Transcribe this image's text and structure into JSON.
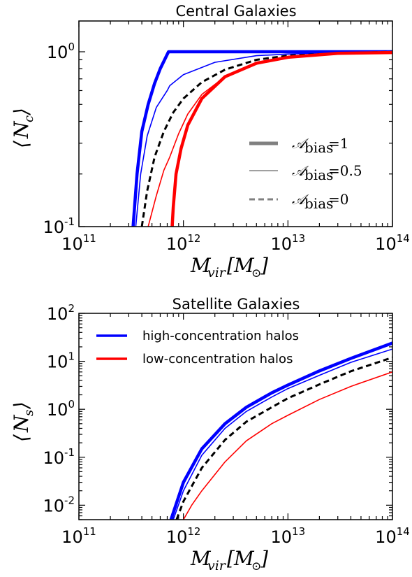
{
  "chart_data": [
    {
      "type": "line",
      "title": "Central Galaxies",
      "xlabel": "M_vir[M_⊙]",
      "ylabel": "⟨N_c⟩",
      "xscale": "log",
      "yscale": "log",
      "xlim": [
        100000000000.0,
        100000000000000.0
      ],
      "ylim": [
        0.1,
        1.5
      ],
      "x_ticks": [
        {
          "mant": "10",
          "exp": "11"
        },
        {
          "mant": "10",
          "exp": "12"
        },
        {
          "mant": "10",
          "exp": "13"
        },
        {
          "mant": "10",
          "exp": "14"
        }
      ],
      "y_ticks": [
        {
          "mant": "10",
          "exp": "-1"
        },
        {
          "mant": "10",
          "exp": "0"
        }
      ],
      "legend": {
        "placement": "lower-right",
        "entries": [
          {
            "label": "A_bias = 1",
            "style": "thick",
            "color": "#808080"
          },
          {
            "label": "A_bias = 0.5",
            "style": "thin",
            "color": "#808080"
          },
          {
            "label": "A_bias = 0",
            "style": "dashed",
            "color": "#808080"
          }
        ]
      },
      "series": [
        {
          "color": "#0000ff",
          "style": "thick",
          "x": [
            330000000000.0,
            360000000000.0,
            400000000000.0,
            460000000000.0,
            530000000000.0,
            600000000000.0,
            720000000000.0,
            1000000000000.0,
            10000000000000.0,
            100000000000000.0
          ],
          "y": [
            0.1,
            0.2,
            0.35,
            0.5,
            0.66,
            0.8,
            1.0,
            1.0,
            1.0,
            1.0
          ]
        },
        {
          "color": "#0000ff",
          "style": "thin",
          "x": [
            350000000000.0,
            390000000000.0,
            450000000000.0,
            550000000000.0,
            700000000000.0,
            740000000000.0,
            1000000000000.0,
            2000000000000.0,
            5000000000000.0,
            10000000000000.0,
            30000000000000.0,
            100000000000000.0
          ],
          "y": [
            0.1,
            0.2,
            0.33,
            0.48,
            0.6,
            0.64,
            0.74,
            0.87,
            0.95,
            0.97,
            0.99,
            1.0
          ]
        },
        {
          "color": "#000000",
          "style": "dashed",
          "x": [
            400000000000.0,
            450000000000.0,
            530000000000.0,
            650000000000.0,
            800000000000.0,
            1000000000000.0,
            1500000000000.0,
            2500000000000.0,
            5000000000000.0,
            10000000000000.0,
            30000000000000.0,
            100000000000000.0
          ],
          "y": [
            0.1,
            0.16,
            0.25,
            0.35,
            0.45,
            0.54,
            0.67,
            0.79,
            0.9,
            0.95,
            0.98,
            1.0
          ]
        },
        {
          "color": "#ff0000",
          "style": "thin",
          "x": [
            460000000000.0,
            550000000000.0,
            650000000000.0,
            740000000000.0,
            900000000000.0,
            1100000000000.0,
            1500000000000.0,
            2500000000000.0,
            5000000000000.0,
            10000000000000.0,
            30000000000000.0,
            100000000000000.0
          ],
          "y": [
            0.1,
            0.15,
            0.21,
            0.25,
            0.34,
            0.44,
            0.57,
            0.72,
            0.86,
            0.93,
            0.98,
            0.99
          ]
        },
        {
          "color": "#ff0000",
          "style": "thick",
          "x": [
            780000000000.0,
            800000000000.0,
            850000000000.0,
            950000000000.0,
            1100000000000.0,
            1500000000000.0,
            2500000000000.0,
            5000000000000.0,
            10000000000000.0,
            30000000000000.0,
            100000000000000.0
          ],
          "y": [
            0.1,
            0.13,
            0.2,
            0.28,
            0.38,
            0.54,
            0.72,
            0.86,
            0.93,
            0.98,
            0.99
          ]
        }
      ]
    },
    {
      "type": "line",
      "title": "Satellite Galaxies",
      "xlabel": "M_vir[M_⊙]",
      "ylabel": "⟨N_s⟩",
      "xscale": "log",
      "yscale": "log",
      "xlim": [
        100000000000.0,
        100000000000000.0
      ],
      "ylim": [
        0.005,
        100
      ],
      "x_ticks": [
        {
          "mant": "10",
          "exp": "11"
        },
        {
          "mant": "10",
          "exp": "12"
        },
        {
          "mant": "10",
          "exp": "13"
        },
        {
          "mant": "10",
          "exp": "14"
        }
      ],
      "y_ticks": [
        {
          "mant": "10",
          "exp": "-2"
        },
        {
          "mant": "10",
          "exp": "-1"
        },
        {
          "mant": "10",
          "exp": "0"
        },
        {
          "mant": "10",
          "exp": "1"
        },
        {
          "mant": "10",
          "exp": "2"
        }
      ],
      "legend": {
        "placement": "top-left",
        "entries": [
          {
            "label": "high-concentration halos",
            "style": "thick",
            "color": "#0000ff"
          },
          {
            "label": "low-concentration halos",
            "style": "thick",
            "color": "#ff0000"
          }
        ]
      },
      "series": [
        {
          "color": "#0000ff",
          "style": "thick",
          "x": [
            760000000000.0,
            1000000000000.0,
            1500000000000.0,
            2500000000000.0,
            4000000000000.0,
            7000000000000.0,
            10000000000000.0,
            20000000000000.0,
            40000000000000.0,
            100000000000000.0
          ],
          "y": [
            0.005,
            0.03,
            0.15,
            0.5,
            1.1,
            2.2,
            3.2,
            6.3,
            11.5,
            24
          ]
        },
        {
          "color": "#0000ff",
          "style": "thin",
          "x": [
            800000000000.0,
            1000000000000.0,
            1500000000000.0,
            2500000000000.0,
            4000000000000.0,
            7000000000000.0,
            10000000000000.0,
            20000000000000.0,
            40000000000000.0,
            100000000000000.0
          ],
          "y": [
            0.005,
            0.02,
            0.11,
            0.4,
            0.9,
            1.8,
            2.7,
            5.1,
            9.5,
            18
          ]
        },
        {
          "color": "#000000",
          "style": "dashed",
          "x": [
            860000000000.0,
            1000000000000.0,
            1500000000000.0,
            2500000000000.0,
            4000000000000.0,
            7000000000000.0,
            10000000000000.0,
            20000000000000.0,
            40000000000000.0,
            100000000000000.0
          ],
          "y": [
            0.005,
            0.012,
            0.06,
            0.23,
            0.55,
            1.1,
            1.7,
            3.3,
            6.2,
            12
          ]
        },
        {
          "color": "#ff0000",
          "style": "thin",
          "x": [
            1000000000000.0,
            1200000000000.0,
            1500000000000.0,
            2500000000000.0,
            4000000000000.0,
            7000000000000.0,
            10000000000000.0,
            20000000000000.0,
            40000000000000.0,
            100000000000000.0
          ],
          "y": [
            0.005,
            0.01,
            0.02,
            0.08,
            0.22,
            0.5,
            0.75,
            1.6,
            3.0,
            6.0
          ]
        }
      ]
    }
  ]
}
